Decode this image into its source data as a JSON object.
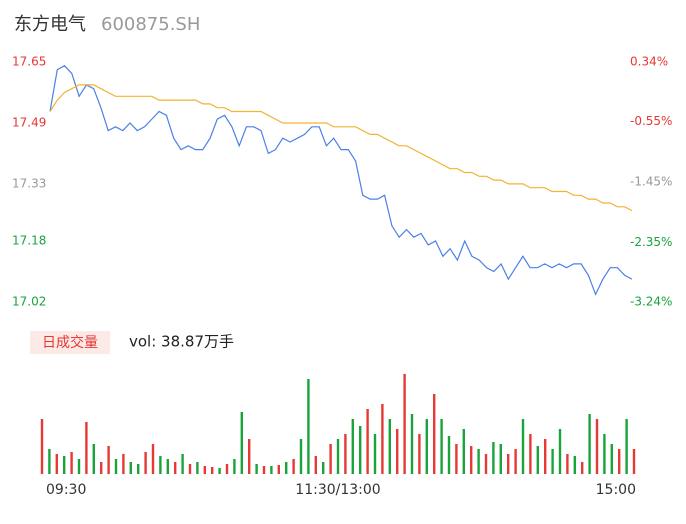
{
  "chart_data": {
    "type": "intraday",
    "title": "东方电气",
    "subtitle": "600875.SH",
    "xlim": [
      0,
      240
    ],
    "xticks": [
      {
        "value": 0,
        "label": "09:30"
      },
      {
        "value": 120,
        "label": "11:30/13:00"
      },
      {
        "value": 240,
        "label": "15:00"
      }
    ],
    "ylim": [
      17.02,
      17.65
    ],
    "yticks": [
      17.02,
      17.18,
      17.33,
      17.49,
      17.65
    ],
    "ytick_colors": [
      "#1aa33a",
      "#1aa33a",
      "#999999",
      "#e53935",
      "#e53935"
    ],
    "y2lim": [
      -3.24,
      0.34
    ],
    "y2ticks": [
      {
        "value": -3.24,
        "label": "-3.24%"
      },
      {
        "value": -2.35,
        "label": "-2.35%"
      },
      {
        "value": -1.45,
        "label": "-1.45%"
      },
      {
        "value": -0.55,
        "label": "-0.55%"
      },
      {
        "value": 0.34,
        "label": "0.34%"
      }
    ],
    "x": [
      0,
      3,
      6,
      9,
      12,
      15,
      18,
      21,
      24,
      27,
      30,
      33,
      36,
      39,
      42,
      45,
      48,
      51,
      54,
      57,
      60,
      63,
      66,
      69,
      72,
      75,
      78,
      81,
      84,
      87,
      90,
      93,
      96,
      99,
      102,
      105,
      108,
      111,
      114,
      117,
      120,
      123,
      126,
      129,
      132,
      135,
      138,
      141,
      144,
      147,
      150,
      153,
      156,
      159,
      162,
      165,
      168,
      171,
      174,
      177,
      180,
      183,
      186,
      189,
      192,
      195,
      198,
      201,
      204,
      207,
      210,
      213,
      216,
      219,
      222,
      225,
      228,
      231,
      234,
      237,
      240
    ],
    "series": [
      {
        "name": "price",
        "color": "#4a80e8",
        "values": [
          17.52,
          17.63,
          17.64,
          17.62,
          17.56,
          17.59,
          17.58,
          17.53,
          17.47,
          17.48,
          17.47,
          17.49,
          17.47,
          17.48,
          17.5,
          17.52,
          17.51,
          17.45,
          17.42,
          17.43,
          17.42,
          17.42,
          17.45,
          17.5,
          17.51,
          17.48,
          17.43,
          17.48,
          17.48,
          17.47,
          17.41,
          17.42,
          17.45,
          17.44,
          17.45,
          17.46,
          17.48,
          17.48,
          17.43,
          17.45,
          17.42,
          17.42,
          17.39,
          17.3,
          17.29,
          17.29,
          17.3,
          17.22,
          17.19,
          17.21,
          17.19,
          17.2,
          17.17,
          17.18,
          17.14,
          17.16,
          17.13,
          17.18,
          17.14,
          17.13,
          17.11,
          17.1,
          17.12,
          17.08,
          17.11,
          17.14,
          17.11,
          17.11,
          17.12,
          17.11,
          17.12,
          17.11,
          17.12,
          17.12,
          17.09,
          17.04,
          17.08,
          17.11,
          17.11,
          17.09,
          17.08
        ]
      },
      {
        "name": "average",
        "color": "#f2b233",
        "values": [
          17.52,
          17.55,
          17.57,
          17.58,
          17.59,
          17.59,
          17.59,
          17.58,
          17.57,
          17.56,
          17.56,
          17.56,
          17.56,
          17.56,
          17.56,
          17.55,
          17.55,
          17.55,
          17.55,
          17.55,
          17.55,
          17.54,
          17.54,
          17.53,
          17.53,
          17.52,
          17.52,
          17.52,
          17.52,
          17.52,
          17.51,
          17.5,
          17.49,
          17.49,
          17.49,
          17.49,
          17.49,
          17.49,
          17.49,
          17.48,
          17.48,
          17.48,
          17.48,
          17.47,
          17.46,
          17.46,
          17.45,
          17.44,
          17.43,
          17.43,
          17.42,
          17.41,
          17.4,
          17.39,
          17.38,
          17.37,
          17.37,
          17.36,
          17.36,
          17.35,
          17.35,
          17.34,
          17.34,
          17.33,
          17.33,
          17.33,
          17.32,
          17.32,
          17.32,
          17.31,
          17.31,
          17.31,
          17.3,
          17.3,
          17.29,
          17.29,
          17.28,
          17.28,
          17.27,
          17.27,
          17.26
        ]
      }
    ],
    "volume_title": "日成交量",
    "volume_label": "vol: 38.87万手",
    "volume_ylim": [
      0,
      110
    ],
    "volume": [
      55,
      25,
      20,
      18,
      22,
      15,
      52,
      30,
      12,
      28,
      15,
      20,
      12,
      10,
      22,
      30,
      18,
      15,
      12,
      20,
      10,
      12,
      8,
      7,
      6,
      10,
      15,
      62,
      35,
      10,
      8,
      8,
      9,
      12,
      15,
      35,
      95,
      18,
      12,
      30,
      35,
      40,
      55,
      48,
      65,
      40,
      70,
      55,
      45,
      100,
      60,
      40,
      55,
      80,
      55,
      38,
      30,
      45,
      28,
      25,
      20,
      32,
      30,
      20,
      25,
      55,
      40,
      28,
      35,
      25,
      45,
      20,
      18,
      12,
      60,
      55,
      40,
      30,
      25,
      55,
      25
    ],
    "volume_colors": [
      "#e53935",
      "#1aa33a",
      "#e53935",
      "#1aa33a",
      "#e53935",
      "#1aa33a",
      "#e53935",
      "#1aa33a",
      "#e53935",
      "#e53935",
      "#1aa33a",
      "#e53935",
      "#1aa33a",
      "#1aa33a",
      "#e53935",
      "#e53935",
      "#1aa33a",
      "#1aa33a",
      "#e53935",
      "#1aa33a",
      "#e53935",
      "#1aa33a",
      "#e53935",
      "#e53935",
      "#1aa33a",
      "#e53935",
      "#1aa33a",
      "#1aa33a",
      "#e53935",
      "#1aa33a",
      "#e53935",
      "#1aa33a",
      "#e53935",
      "#1aa33a",
      "#e53935",
      "#1aa33a",
      "#1aa33a",
      "#e53935",
      "#1aa33a",
      "#e53935",
      "#1aa33a",
      "#e53935",
      "#1aa33a",
      "#1aa33a",
      "#e53935",
      "#1aa33a",
      "#e53935",
      "#1aa33a",
      "#e53935",
      "#e53935",
      "#1aa33a",
      "#e53935",
      "#1aa33a",
      "#e53935",
      "#1aa33a",
      "#1aa33a",
      "#e53935",
      "#1aa33a",
      "#e53935",
      "#1aa33a",
      "#e53935",
      "#1aa33a",
      "#1aa33a",
      "#e53935",
      "#e53935",
      "#1aa33a",
      "#e53935",
      "#1aa33a",
      "#e53935",
      "#1aa33a",
      "#1aa33a",
      "#e53935",
      "#1aa33a",
      "#e53935",
      "#1aa33a",
      "#e53935",
      "#1aa33a",
      "#1aa33a",
      "#e53935",
      "#1aa33a",
      "#e53935"
    ]
  }
}
